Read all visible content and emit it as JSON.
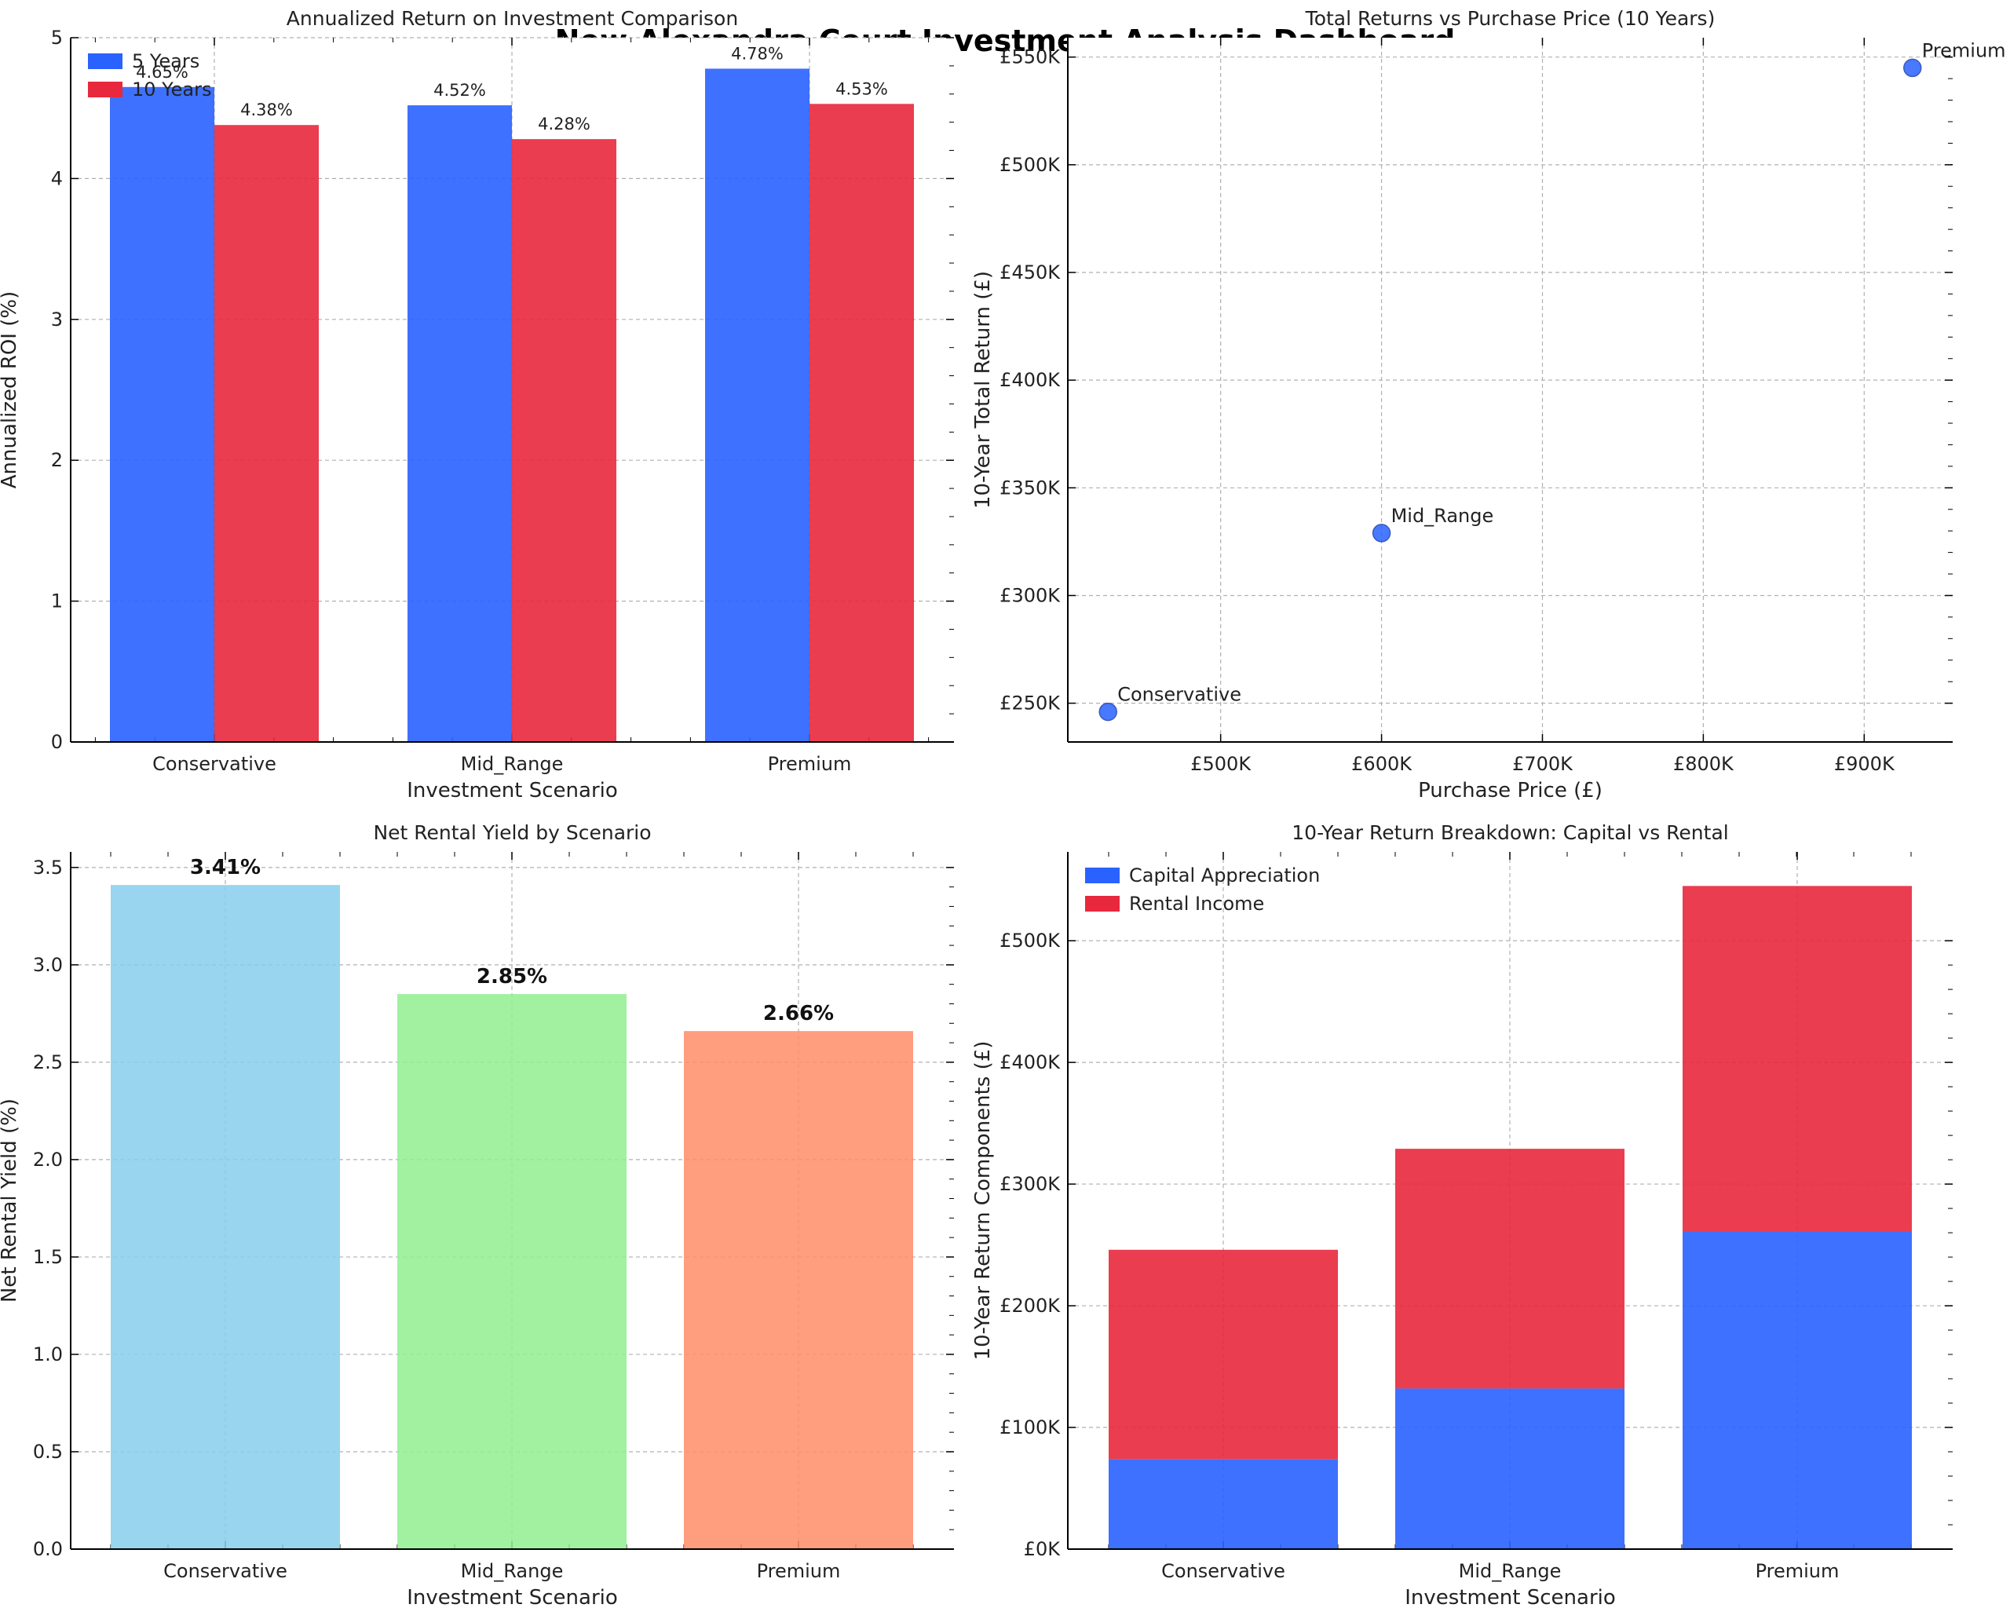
{
  "dashboard_title": "New Alexandra Court Investment Analysis Dashboard",
  "colors": {
    "blue": "#2962ff",
    "red": "#e8283c",
    "lightblue": "#87ceeb",
    "lightgreen": "#90ee90",
    "salmon": "#ff8c69",
    "grid": "#b0b0b0"
  },
  "chart_data": [
    {
      "type": "bar",
      "title": "Annualized Return on Investment Comparison",
      "xlabel": "Investment Scenario",
      "ylabel": "Annualized ROI (%)",
      "categories": [
        "Conservative",
        "Mid_Range",
        "Premium"
      ],
      "series": [
        {
          "name": "5 Years",
          "values": [
            4.65,
            4.52,
            4.78
          ],
          "labels": [
            "4.65%",
            "4.52%",
            "4.78%"
          ]
        },
        {
          "name": "10 Years",
          "values": [
            4.38,
            4.28,
            4.53
          ],
          "labels": [
            "4.38%",
            "4.28%",
            "4.53%"
          ]
        }
      ],
      "ylim": [
        0,
        5
      ],
      "yticks": [
        0,
        1,
        2,
        3,
        4,
        5
      ],
      "ytick_labels": [
        "0",
        "1",
        "2",
        "3",
        "4",
        "5"
      ],
      "legend": "top-left",
      "grid": true
    },
    {
      "type": "scatter",
      "title": "Total Returns vs Purchase Price (10 Years)",
      "xlabel": "Purchase Price (£)",
      "ylabel": "10-Year Total Return (£)",
      "points": [
        {
          "label": "Conservative",
          "x": 430000,
          "y": 246000
        },
        {
          "label": "Mid_Range",
          "x": 600000,
          "y": 329000
        },
        {
          "label": "Premium",
          "x": 930000,
          "y": 545000
        }
      ],
      "xlim": [
        405000,
        955000
      ],
      "ylim": [
        232000,
        559000
      ],
      "xticks": [
        500000,
        600000,
        700000,
        800000,
        900000
      ],
      "xtick_labels": [
        "£500K",
        "£600K",
        "£700K",
        "£800K",
        "£900K"
      ],
      "yticks": [
        250000,
        300000,
        350000,
        400000,
        450000,
        500000,
        550000
      ],
      "ytick_labels": [
        "£250K",
        "£300K",
        "£350K",
        "£400K",
        "£450K",
        "£500K",
        "£550K"
      ],
      "grid": true
    },
    {
      "type": "bar",
      "title": "Net Rental Yield by Scenario",
      "xlabel": "Investment Scenario",
      "ylabel": "Net Rental Yield (%)",
      "categories": [
        "Conservative",
        "Mid_Range",
        "Premium"
      ],
      "values": [
        3.41,
        2.85,
        2.66
      ],
      "labels": [
        "3.41%",
        "2.85%",
        "2.66%"
      ],
      "ylim": [
        0,
        3.58
      ],
      "yticks": [
        0,
        0.5,
        1,
        1.5,
        2,
        2.5,
        3,
        3.5
      ],
      "ytick_labels": [
        "0.0",
        "0.5",
        "1.0",
        "1.5",
        "2.0",
        "2.5",
        "3.0",
        "3.5"
      ],
      "grid": true
    },
    {
      "type": "bar",
      "stacked": true,
      "title": "10-Year Return Breakdown: Capital vs Rental",
      "xlabel": "Investment Scenario",
      "ylabel": "10-Year Return Components (£)",
      "categories": [
        "Conservative",
        "Mid_Range",
        "Premium"
      ],
      "series": [
        {
          "name": "Capital Appreciation",
          "values": [
            74000,
            132000,
            261000
          ]
        },
        {
          "name": "Rental Income",
          "values": [
            172000,
            197000,
            284000
          ]
        }
      ],
      "ylim": [
        0,
        573000
      ],
      "yticks": [
        0,
        100000,
        200000,
        300000,
        400000,
        500000
      ],
      "ytick_labels": [
        "£0K",
        "£100K",
        "£200K",
        "£300K",
        "£400K",
        "£500K"
      ],
      "legend": "top-left",
      "grid": true
    }
  ]
}
